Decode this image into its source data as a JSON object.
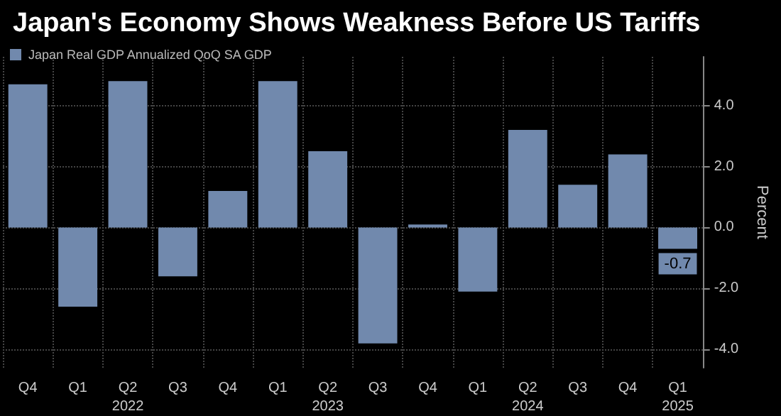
{
  "chart_data": {
    "type": "bar",
    "title": "Japan's Economy Shows Weakness Before US Tariffs",
    "ylabel": "Percent",
    "categories": [
      "Q4",
      "Q1",
      "Q2\n2022",
      "Q3",
      "Q4",
      "Q1",
      "Q2\n2023",
      "Q3",
      "Q4",
      "Q1",
      "Q2\n2024",
      "Q3",
      "Q4",
      "Q1\n2025"
    ],
    "series": [
      {
        "name": "Japan Real GDP Annualized QoQ SA GDP",
        "color": "#7189ad",
        "values": [
          4.7,
          -2.6,
          4.8,
          -1.6,
          1.2,
          4.8,
          2.5,
          -3.8,
          0.1,
          -2.1,
          3.2,
          1.4,
          2.4,
          -0.7
        ],
        "value_labels": [
          null,
          null,
          null,
          null,
          null,
          null,
          null,
          null,
          null,
          null,
          null,
          null,
          null,
          "-0.7"
        ]
      }
    ],
    "ylim": [
      -4.6,
      5.6
    ],
    "yticks": [
      {
        "value": -4,
        "label": "-4.0"
      },
      {
        "value": -2,
        "label": "-2.0"
      },
      {
        "value": 0,
        "label": "0.0"
      },
      {
        "value": 2,
        "label": "2.0"
      },
      {
        "value": 4,
        "label": "4.0"
      }
    ],
    "grid": true,
    "legend": "top left"
  }
}
